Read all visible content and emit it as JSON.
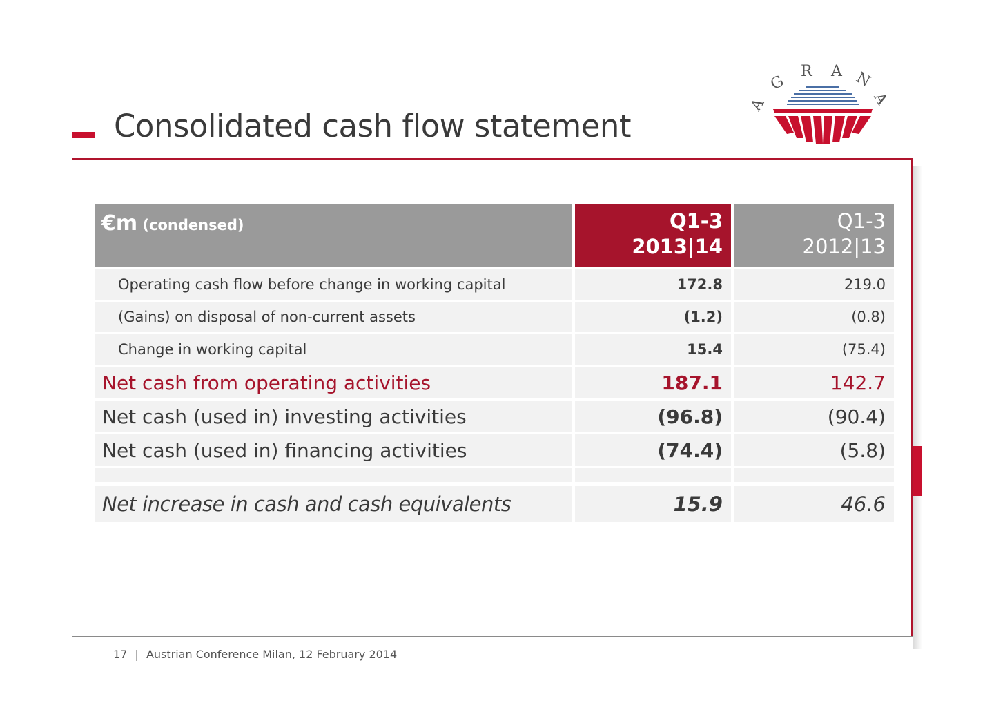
{
  "title": "Consolidated cash flow statement",
  "logo": {
    "text": "AGRANA",
    "colors": {
      "red": "#c8102e",
      "blue": "#4a6fa5"
    }
  },
  "table": {
    "header": {
      "unit": "€m",
      "unit_note": "(condensed)",
      "current_period_line1": "Q1-3",
      "current_period_line2": "2013|14",
      "prior_period_line1": "Q1-3",
      "prior_period_line2": "2012|13"
    },
    "rows": [
      {
        "label": "Operating cash flow before change in working capital",
        "current": "172.8",
        "prior": "219.0"
      },
      {
        "label": "(Gains) on disposal of non-current assets",
        "current": "(1.2)",
        "prior": "(0.8)"
      },
      {
        "label": "Change in working capital",
        "current": "15.4",
        "prior": "(75.4)"
      },
      {
        "label": "Net cash from operating activities",
        "current": "187.1",
        "prior": "142.7"
      },
      {
        "label": "Net cash (used in) investing activities",
        "current": "(96.8)",
        "prior": "(90.4)"
      },
      {
        "label": "Net cash (used in) financing activities",
        "current": "(74.4)",
        "prior": "(5.8)"
      },
      {
        "label": "Net increase in cash and cash equivalents",
        "current": "15.9",
        "prior": "46.6"
      }
    ]
  },
  "footer": {
    "page": "17",
    "separator": "|",
    "event": "Austrian Conference Milan, 12 February 2014"
  },
  "colors": {
    "accent": "#c8102e",
    "header_current": "#a6142c",
    "header_gray": "#9a9a9a",
    "row_bg": "#f2f2f2"
  }
}
